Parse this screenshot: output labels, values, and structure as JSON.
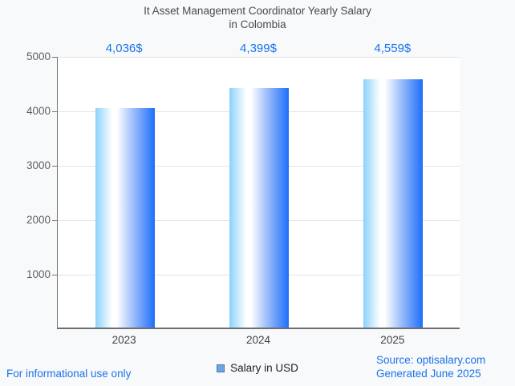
{
  "header": {
    "title_line1": "It Asset Management Coordinator Yearly Salary",
    "title_line2": "in Colombia"
  },
  "chart_data": {
    "type": "bar",
    "title": "It Asset Management Coordinator Yearly Salary in Colombia",
    "categories": [
      "2023",
      "2024",
      "2025"
    ],
    "series": [
      {
        "name": "Salary in USD",
        "values": [
          4036,
          4399,
          4559
        ]
      }
    ],
    "value_labels": [
      "4,036$",
      "4,399$",
      "4,559$"
    ],
    "xlabel": "",
    "ylabel": "",
    "ylim": [
      0,
      5000
    ],
    "yticks": [
      1000,
      2000,
      3000,
      4000,
      5000
    ],
    "grid": true,
    "legend_position": "bottom",
    "colors": {
      "value_label": "#1a73e8",
      "bar_gradient_left": "#8ad2fc",
      "bar_gradient_mid": "#ffffff",
      "bar_gradient_right": "#1d6ffa",
      "gridline": "#e3e3e3",
      "axis": "#757575",
      "y_tick_label": "#5f5f5f",
      "x_tick_label": "#424242",
      "title": "#4a4a4a",
      "background": "#f8f9fa",
      "plot_background": "#ffffff"
    }
  },
  "legend": {
    "label": "Salary in USD",
    "swatch_color": "#6ba5e7"
  },
  "footer": {
    "left_note": "For informational use only",
    "source_line": "Source: optisalary.com",
    "generated_line": "Generated June 2025"
  }
}
